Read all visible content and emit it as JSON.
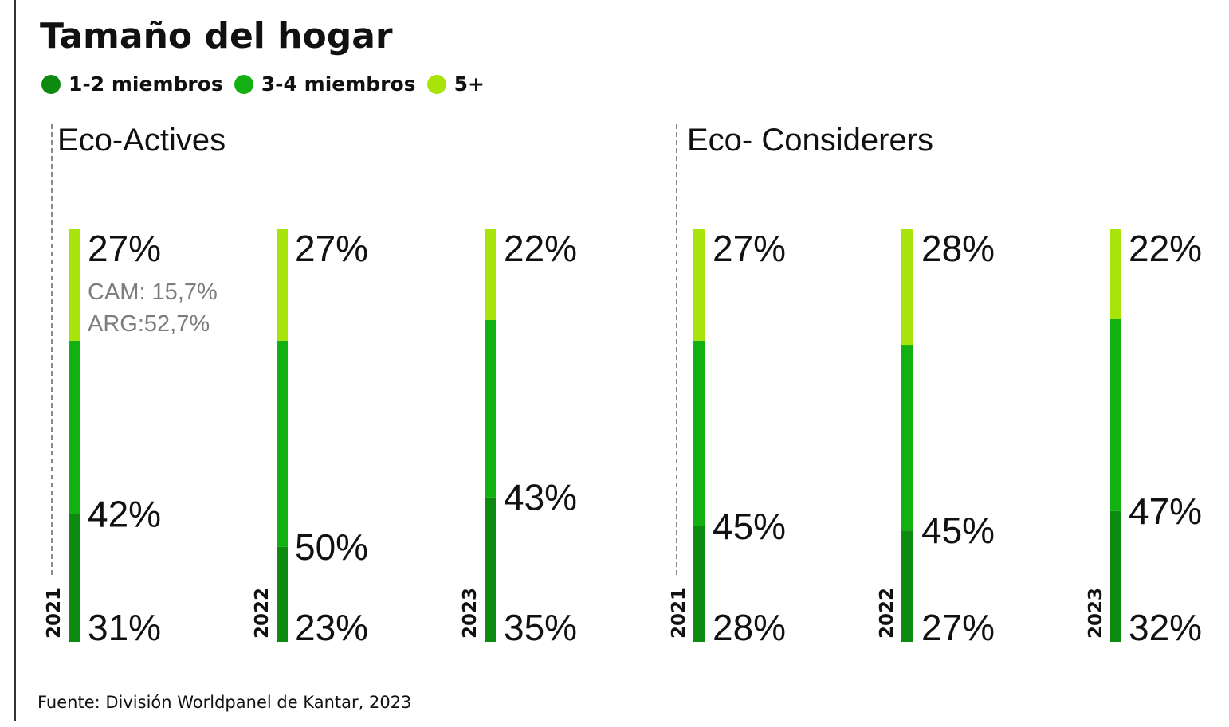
{
  "chart_data": {
    "type": "bar",
    "title": "Tamaño del hogar",
    "stacked": true,
    "orientation": "vertical",
    "legend": [
      {
        "name": "1-2 miembros",
        "color": "#0f8a10"
      },
      {
        "name": "3-4 miembros",
        "color": "#12b012"
      },
      {
        "name": "5+",
        "color": "#a8e40a"
      }
    ],
    "legend_position": "top-left",
    "grid": false,
    "groups": [
      {
        "name": "Eco-Actives",
        "bars": [
          {
            "year": "2021",
            "values": {
              "1-2 miembros": 31,
              "3-4 miembros": 42,
              "5+": 27
            },
            "labels": {
              "1-2 miembros": "31%",
              "3-4 miembros": "42%",
              "5+": "27%"
            }
          },
          {
            "year": "2022",
            "values": {
              "1-2 miembros": 23,
              "3-4 miembros": 50,
              "5+": 27
            },
            "labels": {
              "1-2 miembros": "23%",
              "3-4 miembros": "50%",
              "5+": "27%"
            }
          },
          {
            "year": "2023",
            "values": {
              "1-2 miembros": 35,
              "3-4 miembros": 43,
              "5+": 22
            },
            "labels": {
              "1-2 miembros": "35%",
              "3-4 miembros": "43%",
              "5+": "22%"
            }
          }
        ]
      },
      {
        "name": "Eco- Considerers",
        "bars": [
          {
            "year": "2021",
            "values": {
              "1-2 miembros": 28,
              "3-4 miembros": 45,
              "5+": 27
            },
            "labels": {
              "1-2 miembros": "28%",
              "3-4 miembros": "45%",
              "5+": "27%"
            }
          },
          {
            "year": "2022",
            "values": {
              "1-2 miembros": 27,
              "3-4 miembros": 45,
              "5+": 28
            },
            "labels": {
              "1-2 miembros": "27%",
              "3-4 miembros": "45%",
              "5+": "28%"
            }
          },
          {
            "year": "2023",
            "values": {
              "1-2 miembros": 32,
              "3-4 miembros": 47,
              "5+": 22
            },
            "labels": {
              "1-2 miembros": "32%",
              "3-4 miembros": "47%",
              "5+": "22%"
            }
          }
        ]
      }
    ],
    "annotations": [
      "CAM: 15,7%",
      "ARG:52,7%"
    ],
    "source": "Fuente: División Worldpanel de Kantar, 2023"
  }
}
